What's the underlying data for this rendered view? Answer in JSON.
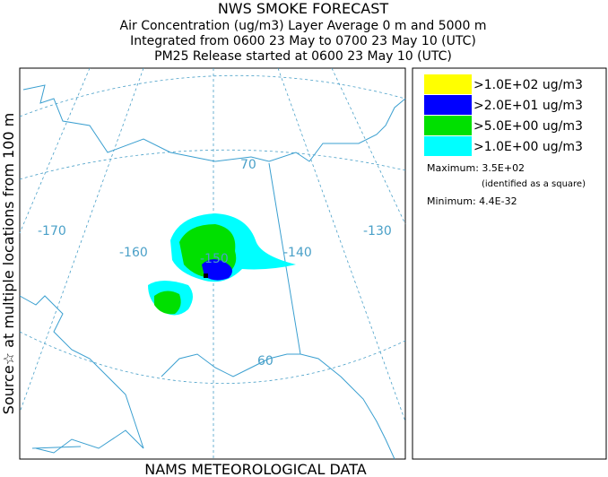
{
  "header": {
    "lines": [
      "NWS SMOKE FORECAST",
      "Air Concentration (ug/m3) Layer Average    0 m and  5000 m",
      "Integrated from 0600 23 May to 0700 23 May 10 (UTC)",
      "PM25 Release started at 0600 23 May 10 (UTC)"
    ]
  },
  "side_label": "Source☆  at multiple locations   from   100 m",
  "footer": "NAMS METEOROLOGICAL DATA",
  "legend": {
    "items": [
      {
        "label": ">1.0E+02 ug/m3",
        "color": "#ffff00"
      },
      {
        "label": ">2.0E+01 ug/m3",
        "color": "#0000ff"
      },
      {
        "label": ">5.0E+00 ug/m3",
        "color": "#00e000"
      },
      {
        "label": ">1.0E+00 ug/m3",
        "color": "#00ffff"
      }
    ],
    "maximum": "Maximum: 3.5E+02",
    "maximum_note": "(identified as a square)",
    "minimum": "Minimum: 4.4E-32"
  },
  "map": {
    "labels": [
      "-170",
      "-160",
      "-150",
      "-140",
      "-130",
      "70",
      "60"
    ]
  }
}
